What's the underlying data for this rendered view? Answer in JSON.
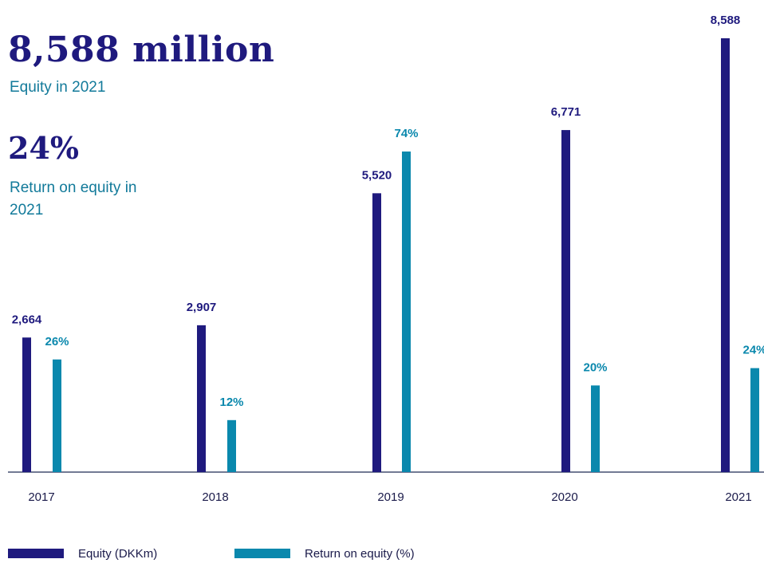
{
  "kpis": {
    "equity": {
      "value": "8,588 million",
      "label": "Equity in 2021"
    },
    "roe": {
      "value": "24%",
      "label": "Return on equity in 2021"
    }
  },
  "colors": {
    "equity": "#1f1a7e",
    "roe": "#0a88ad",
    "axis": "#1f2a55"
  },
  "chart_data": {
    "type": "bar",
    "categories": [
      "2017",
      "2018",
      "2019",
      "2020",
      "2021"
    ],
    "series": [
      {
        "name": "Equity (DKKm)",
        "values": [
          2664,
          2907,
          5520,
          6771,
          8588
        ],
        "labels": [
          "2,664",
          "2,907",
          "5,520",
          "6,771",
          "8,588"
        ]
      },
      {
        "name": "Return on equity (%)",
        "values": [
          26,
          12,
          74,
          20,
          24
        ],
        "labels": [
          "26%",
          "12%",
          "74%",
          "20%",
          "24%"
        ]
      }
    ],
    "title": "",
    "xlabel": "",
    "ylabel": "",
    "legend_position": "bottom-left",
    "grid": false
  }
}
